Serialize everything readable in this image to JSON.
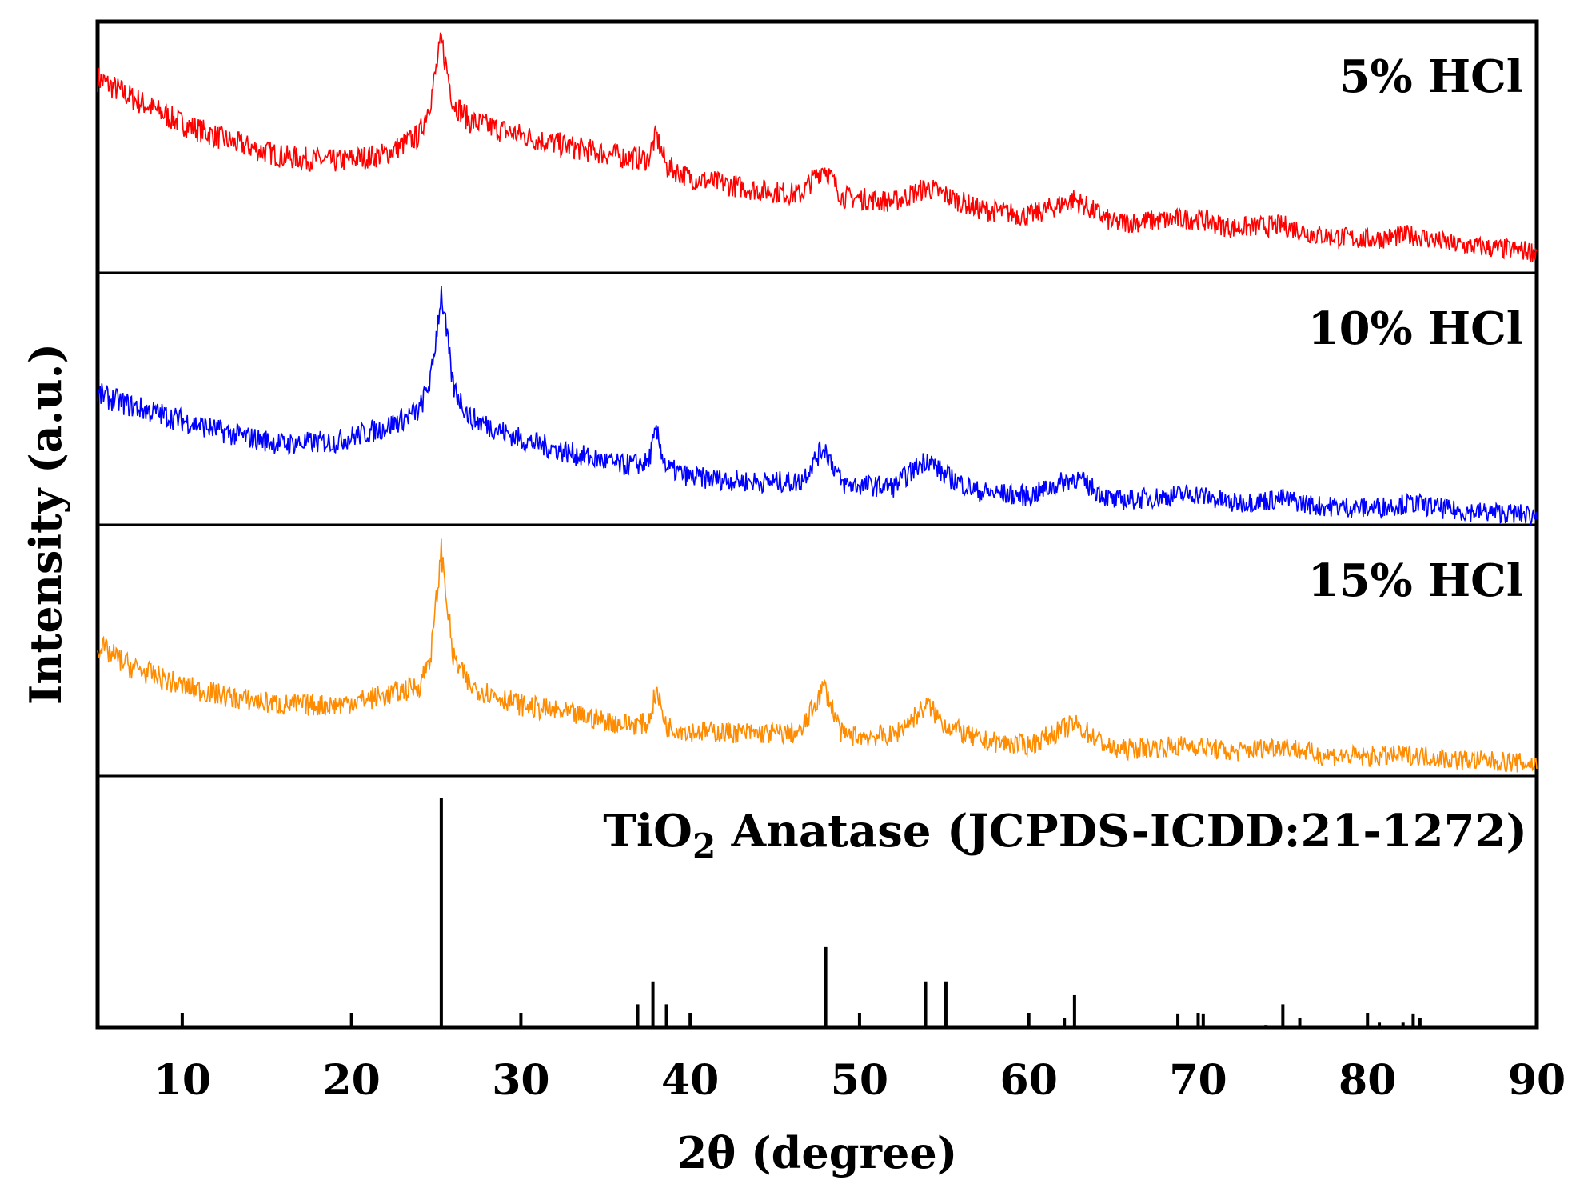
{
  "chart_data": {
    "type": "line",
    "title": "",
    "xlabel": "2θ (degree)",
    "ylabel": "Intensity (a.u.)",
    "xlim": [
      5,
      90
    ],
    "x_ticks": [
      "10",
      "20",
      "30",
      "40",
      "50",
      "60",
      "70",
      "80",
      "90"
    ],
    "series": [
      {
        "name": "5% HCl",
        "color": "#ff0000",
        "x": [
          5,
          7,
          10,
          13,
          16,
          19,
          22,
          24,
          24.7,
          25.3,
          26,
          27,
          30,
          33,
          36,
          37.5,
          38,
          38.6,
          40,
          44,
          46.5,
          47.9,
          49,
          52,
          54,
          55,
          57,
          60,
          62.7,
          65,
          69.8,
          72,
          75,
          77,
          80,
          82.7,
          85,
          88,
          90
        ],
        "y": [
          0.82,
          0.74,
          0.63,
          0.55,
          0.49,
          0.47,
          0.5,
          0.58,
          0.74,
          0.98,
          0.72,
          0.64,
          0.58,
          0.53,
          0.49,
          0.48,
          0.58,
          0.45,
          0.4,
          0.35,
          0.33,
          0.45,
          0.32,
          0.3,
          0.36,
          0.33,
          0.27,
          0.24,
          0.31,
          0.21,
          0.23,
          0.19,
          0.2,
          0.16,
          0.14,
          0.16,
          0.12,
          0.1,
          0.09
        ]
      },
      {
        "name": "10% HCl",
        "color": "#0000ff",
        "x": [
          5,
          7,
          10,
          13,
          16,
          19,
          22,
          24,
          24.7,
          25.3,
          26,
          27,
          30,
          33,
          36,
          37.5,
          38,
          38.6,
          40,
          44,
          46.5,
          47.9,
          49,
          52,
          54,
          55,
          57,
          60,
          62.7,
          65,
          69.8,
          72,
          75,
          77,
          80,
          82.7,
          85,
          88,
          90
        ],
        "y": [
          0.55,
          0.5,
          0.44,
          0.38,
          0.34,
          0.35,
          0.41,
          0.48,
          0.62,
          0.98,
          0.58,
          0.45,
          0.36,
          0.3,
          0.25,
          0.26,
          0.39,
          0.24,
          0.2,
          0.18,
          0.18,
          0.33,
          0.17,
          0.16,
          0.28,
          0.21,
          0.14,
          0.12,
          0.2,
          0.1,
          0.13,
          0.09,
          0.11,
          0.08,
          0.07,
          0.09,
          0.06,
          0.05,
          0.04
        ]
      },
      {
        "name": "15% HCl",
        "color": "#ff8c00",
        "x": [
          5,
          7,
          10,
          13,
          16,
          19,
          22,
          24,
          24.7,
          25.3,
          26,
          27,
          30,
          33,
          36,
          37.5,
          38,
          38.6,
          40,
          44,
          46.5,
          47.9,
          49,
          52,
          54,
          55,
          57,
          60,
          62.7,
          65,
          69.8,
          72,
          75,
          77,
          80,
          82.7,
          85,
          88,
          90
        ],
        "y": [
          0.55,
          0.46,
          0.38,
          0.33,
          0.3,
          0.3,
          0.34,
          0.38,
          0.52,
          0.95,
          0.5,
          0.38,
          0.3,
          0.26,
          0.22,
          0.22,
          0.36,
          0.21,
          0.19,
          0.18,
          0.18,
          0.38,
          0.17,
          0.17,
          0.3,
          0.22,
          0.15,
          0.13,
          0.22,
          0.11,
          0.13,
          0.1,
          0.13,
          0.09,
          0.08,
          0.09,
          0.07,
          0.06,
          0.05
        ]
      }
    ],
    "reference": {
      "name": "TiO₂ Anatase (JCPDS-ICDD:21-1272)",
      "name_main": "TiO",
      "name_sub": "2",
      "name_rest": " Anatase (JCPDS-ICDD:21-1272)",
      "color": "#000000",
      "positions": [
        25.3,
        36.9,
        37.8,
        38.6,
        48.0,
        53.9,
        55.1,
        62.1,
        62.7,
        68.8,
        70.3,
        74.0,
        75.0,
        76.0,
        80.7,
        82.1,
        82.7,
        83.1
      ],
      "intensities": [
        100,
        10,
        20,
        10,
        35,
        20,
        20,
        4,
        14,
        6,
        6,
        1,
        10,
        4,
        2,
        2,
        6,
        4
      ]
    }
  }
}
